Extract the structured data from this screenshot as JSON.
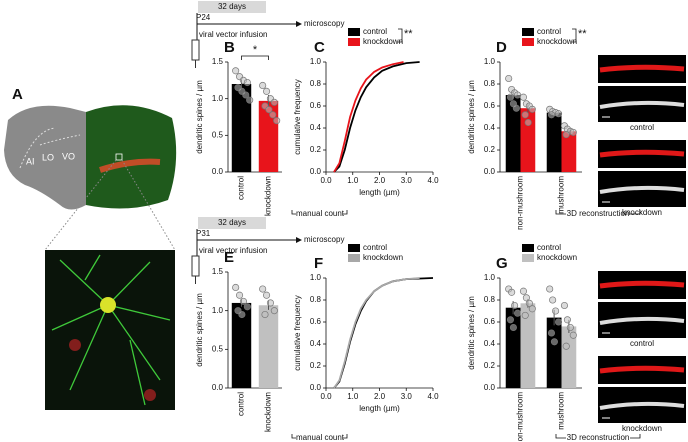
{
  "panel_a": {
    "label": "A",
    "regions": [
      "AI",
      "LO",
      "VO"
    ]
  },
  "timelines": [
    {
      "duration": "32 days",
      "start": "P24",
      "end": "microscopy",
      "infusion": "viral vector infusion"
    },
    {
      "duration": "32 days",
      "start": "P31",
      "end": "microscopy",
      "infusion": "viral vector infusion"
    }
  ],
  "brackets": [
    [
      "manual count",
      "3D reconstruction"
    ],
    [
      "manual count",
      "3D reconstruction"
    ]
  ],
  "image_labels": [
    [
      "control",
      "knockdown"
    ],
    [
      "control",
      "knockdown"
    ]
  ],
  "chart_data": [
    {
      "type": "bar",
      "label": "B",
      "annotation": "*",
      "ylabel": "dendritic spines / µm",
      "categories": [
        "control",
        "knockdown"
      ],
      "values": [
        1.2,
        0.97
      ],
      "errors": [
        0.06,
        0.08
      ],
      "colors": [
        "#000000",
        "#e8141b"
      ],
      "points": [
        [
          1.38,
          1.3,
          1.25,
          1.22,
          1.15,
          1.1,
          1.05,
          0.98
        ],
        [
          1.18,
          1.1,
          1.0,
          0.95,
          0.9,
          0.85,
          0.78,
          0.7
        ]
      ],
      "ylim": [
        0,
        1.5
      ],
      "yticks": [
        {
          "value": 0,
          "label": "0.0"
        },
        0.5,
        {
          "value": 1,
          "label": "1.0"
        },
        1.5
      ]
    },
    {
      "type": "line",
      "label": "C",
      "annotation": "**",
      "ylabel": "cumulative frequency",
      "xlabel": "length (µm)",
      "series": [
        {
          "name": "control",
          "color": "#000000",
          "x": [
            0.3,
            0.5,
            0.7,
            0.9,
            1.1,
            1.3,
            1.5,
            1.8,
            2.1,
            2.5,
            3.0,
            3.5
          ],
          "values": [
            0,
            0.05,
            0.2,
            0.4,
            0.56,
            0.68,
            0.77,
            0.86,
            0.92,
            0.96,
            0.99,
            1.0
          ]
        },
        {
          "name": "knockdown",
          "color": "#e8141b",
          "x": [
            0.3,
            0.5,
            0.7,
            0.9,
            1.1,
            1.3,
            1.5,
            1.8,
            2.1,
            2.5,
            2.9
          ],
          "values": [
            0,
            0.08,
            0.28,
            0.5,
            0.65,
            0.76,
            0.84,
            0.91,
            0.95,
            0.98,
            1.0
          ]
        }
      ],
      "xlim": [
        0,
        4
      ],
      "xticks": [
        {
          "value": 0,
          "label": "0.0"
        },
        {
          "value": 1,
          "label": "1.0"
        },
        {
          "value": 2,
          "label": "2.0"
        },
        {
          "value": 3,
          "label": "3.0"
        },
        {
          "value": 4,
          "label": "4.0"
        }
      ],
      "ylim": [
        0,
        1
      ],
      "yticks": [
        {
          "value": 0,
          "label": "0.0"
        },
        0.2,
        0.4,
        0.6,
        0.8,
        {
          "value": 1,
          "label": "1.0"
        }
      ]
    },
    {
      "type": "bar",
      "label": "D",
      "annotation": "**",
      "ylabel": "dendritic spines / µm",
      "categories": [
        "non-mushroom",
        "mushroom"
      ],
      "series": [
        {
          "name": "control",
          "color": "#000000",
          "values": [
            0.7,
            0.54
          ],
          "errors": [
            0.04,
            0.01
          ],
          "points": [
            [
              0.85,
              0.75,
              0.72,
              0.7,
              0.68,
              0.62,
              0.58
            ],
            [
              0.57,
              0.55,
              0.54,
              0.53,
              0.52
            ]
          ]
        },
        {
          "name": "knockdown",
          "color": "#e8141b",
          "values": [
            0.58,
            0.37
          ],
          "errors": [
            0.04,
            0.02
          ],
          "points": [
            [
              0.68,
              0.62,
              0.6,
              0.57,
              0.52,
              0.45
            ],
            [
              0.42,
              0.39,
              0.37,
              0.36,
              0.34
            ]
          ]
        }
      ],
      "ylim": [
        0,
        1
      ],
      "yticks": [
        {
          "value": 0,
          "label": "0.0"
        },
        0.2,
        0.4,
        0.6,
        0.8,
        {
          "value": 1,
          "label": "1.0"
        }
      ]
    },
    {
      "type": "bar",
      "label": "E",
      "ylabel": "dendritic spines / µm",
      "categories": [
        "control",
        "knockdown"
      ],
      "values": [
        1.1,
        1.07
      ],
      "errors": [
        0.05,
        0.06
      ],
      "colors": [
        "#000000",
        "#c0c0c0"
      ],
      "points": [
        [
          1.3,
          1.2,
          1.12,
          1.05,
          1.0,
          0.95
        ],
        [
          1.28,
          1.2,
          1.1,
          1.0,
          0.95
        ]
      ],
      "ylim": [
        0,
        1.5
      ],
      "yticks": [
        {
          "value": 0,
          "label": "0.0"
        },
        0.5,
        {
          "value": 1,
          "label": "1.0"
        },
        1.5
      ]
    },
    {
      "type": "line",
      "label": "F",
      "ylabel": "cumulative frequency",
      "xlabel": "length (µm)",
      "series": [
        {
          "name": "control",
          "color": "#000000",
          "x": [
            0.3,
            0.5,
            0.7,
            0.9,
            1.1,
            1.3,
            1.5,
            1.8,
            2.1,
            2.5,
            3.0,
            4.0
          ],
          "values": [
            0,
            0.06,
            0.22,
            0.42,
            0.58,
            0.7,
            0.79,
            0.88,
            0.93,
            0.97,
            0.99,
            1.0
          ]
        },
        {
          "name": "knockdown",
          "color": "#a8a8a8",
          "x": [
            0.3,
            0.5,
            0.7,
            0.9,
            1.1,
            1.3,
            1.5,
            1.8,
            2.1,
            2.5,
            3.0,
            3.5
          ],
          "values": [
            0,
            0.07,
            0.24,
            0.44,
            0.6,
            0.72,
            0.8,
            0.88,
            0.93,
            0.97,
            0.99,
            1.0
          ]
        }
      ],
      "xlim": [
        0,
        4
      ],
      "xticks": [
        {
          "value": 0,
          "label": "0.0"
        },
        {
          "value": 1,
          "label": "1.0"
        },
        {
          "value": 2,
          "label": "2.0"
        },
        {
          "value": 3,
          "label": "3.0"
        },
        {
          "value": 4,
          "label": "4.0"
        }
      ],
      "ylim": [
        0,
        1
      ],
      "yticks": [
        {
          "value": 0,
          "label": "0.0"
        },
        0.2,
        0.4,
        0.6,
        0.8,
        {
          "value": 1,
          "label": "1.0"
        }
      ]
    },
    {
      "type": "bar",
      "label": "G",
      "ylabel": "dendritic spines / µm",
      "categories": [
        "non-mushroom",
        "mushroom"
      ],
      "series": [
        {
          "name": "control",
          "color": "#000000",
          "values": [
            0.73,
            0.64
          ],
          "errors": [
            0.06,
            0.07
          ],
          "points": [
            [
              0.9,
              0.87,
              0.75,
              0.68,
              0.62,
              0.55
            ],
            [
              0.9,
              0.8,
              0.7,
              0.6,
              0.5,
              0.42
            ]
          ]
        },
        {
          "name": "knockdown",
          "color": "#c0c0c0",
          "values": [
            0.77,
            0.56
          ],
          "errors": [
            0.04,
            0.06
          ],
          "points": [
            [
              0.88,
              0.82,
              0.77,
              0.72,
              0.66
            ],
            [
              0.75,
              0.62,
              0.55,
              0.48,
              0.38
            ]
          ]
        }
      ],
      "ylim": [
        0,
        1
      ],
      "yticks": [
        {
          "value": 0,
          "label": "0.0"
        },
        0.2,
        0.4,
        0.6,
        0.8,
        {
          "value": 1,
          "label": "1.0"
        }
      ]
    }
  ]
}
